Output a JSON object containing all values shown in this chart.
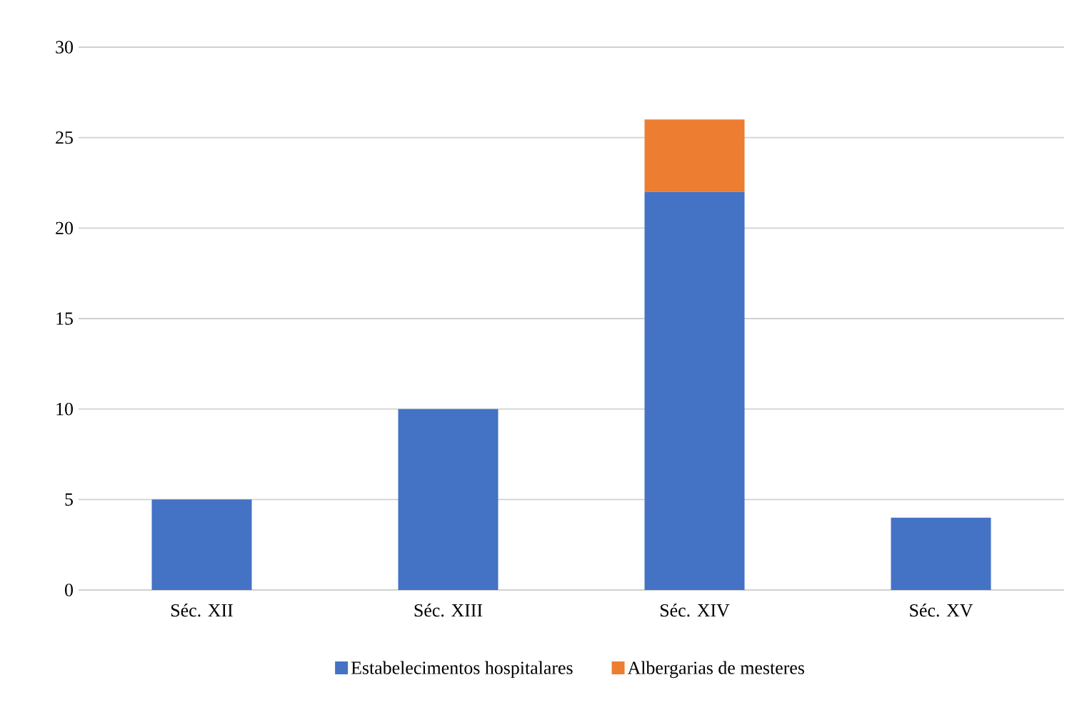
{
  "chart_data": {
    "type": "bar",
    "stacked": true,
    "categories": [
      "Séc. XII",
      "Séc. XIII",
      "Séc. XIV",
      "Séc. XV"
    ],
    "series": [
      {
        "name": "Estabelecimentos hospitalares",
        "color": "#4472c4",
        "values": [
          5,
          10,
          22,
          4
        ]
      },
      {
        "name": "Albergarias de mesteres",
        "color": "#ed7d31",
        "values": [
          0,
          0,
          4,
          0
        ]
      }
    ],
    "ylim": [
      0,
      30
    ],
    "yticks": [
      0,
      5,
      10,
      15,
      20,
      25,
      30
    ],
    "grid": "y",
    "legend": "bottom"
  }
}
